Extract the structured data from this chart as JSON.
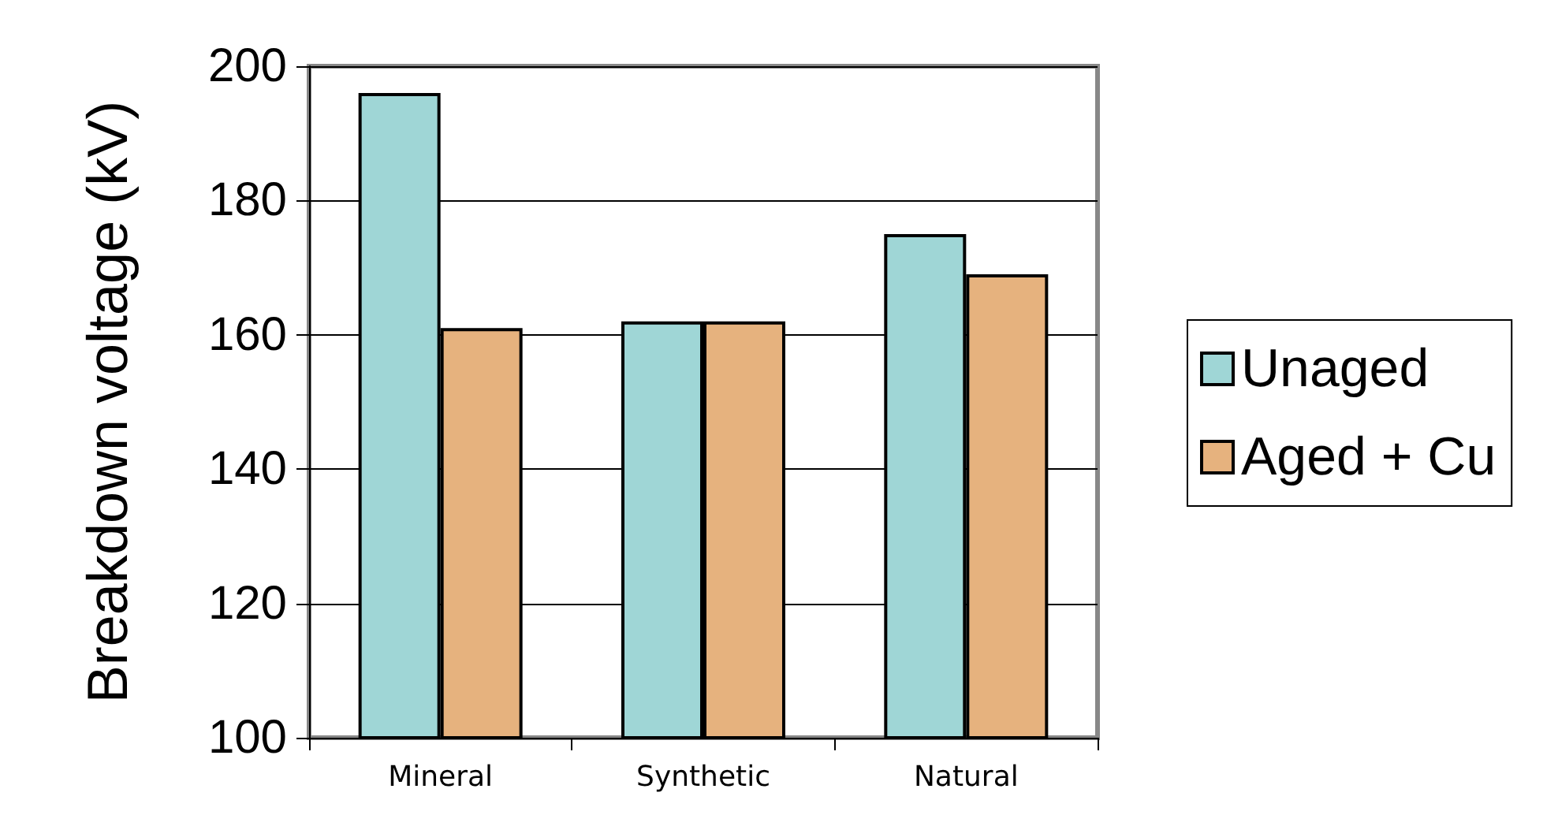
{
  "chart_data": {
    "type": "bar",
    "ylabel": "Breakdown voltage (kV)",
    "categories": [
      "Mineral",
      "Synthetic",
      "Natural"
    ],
    "series": [
      {
        "name": "Unaged",
        "color": "#9fd6d6",
        "values": [
          196,
          162,
          175
        ]
      },
      {
        "name": "Aged + Cu",
        "color": "#e6b27e",
        "values": [
          161,
          162,
          169
        ]
      }
    ],
    "ylim": [
      100,
      200
    ],
    "yticks": [
      100,
      120,
      140,
      160,
      180,
      200
    ],
    "grid": "y",
    "legend": "right"
  }
}
